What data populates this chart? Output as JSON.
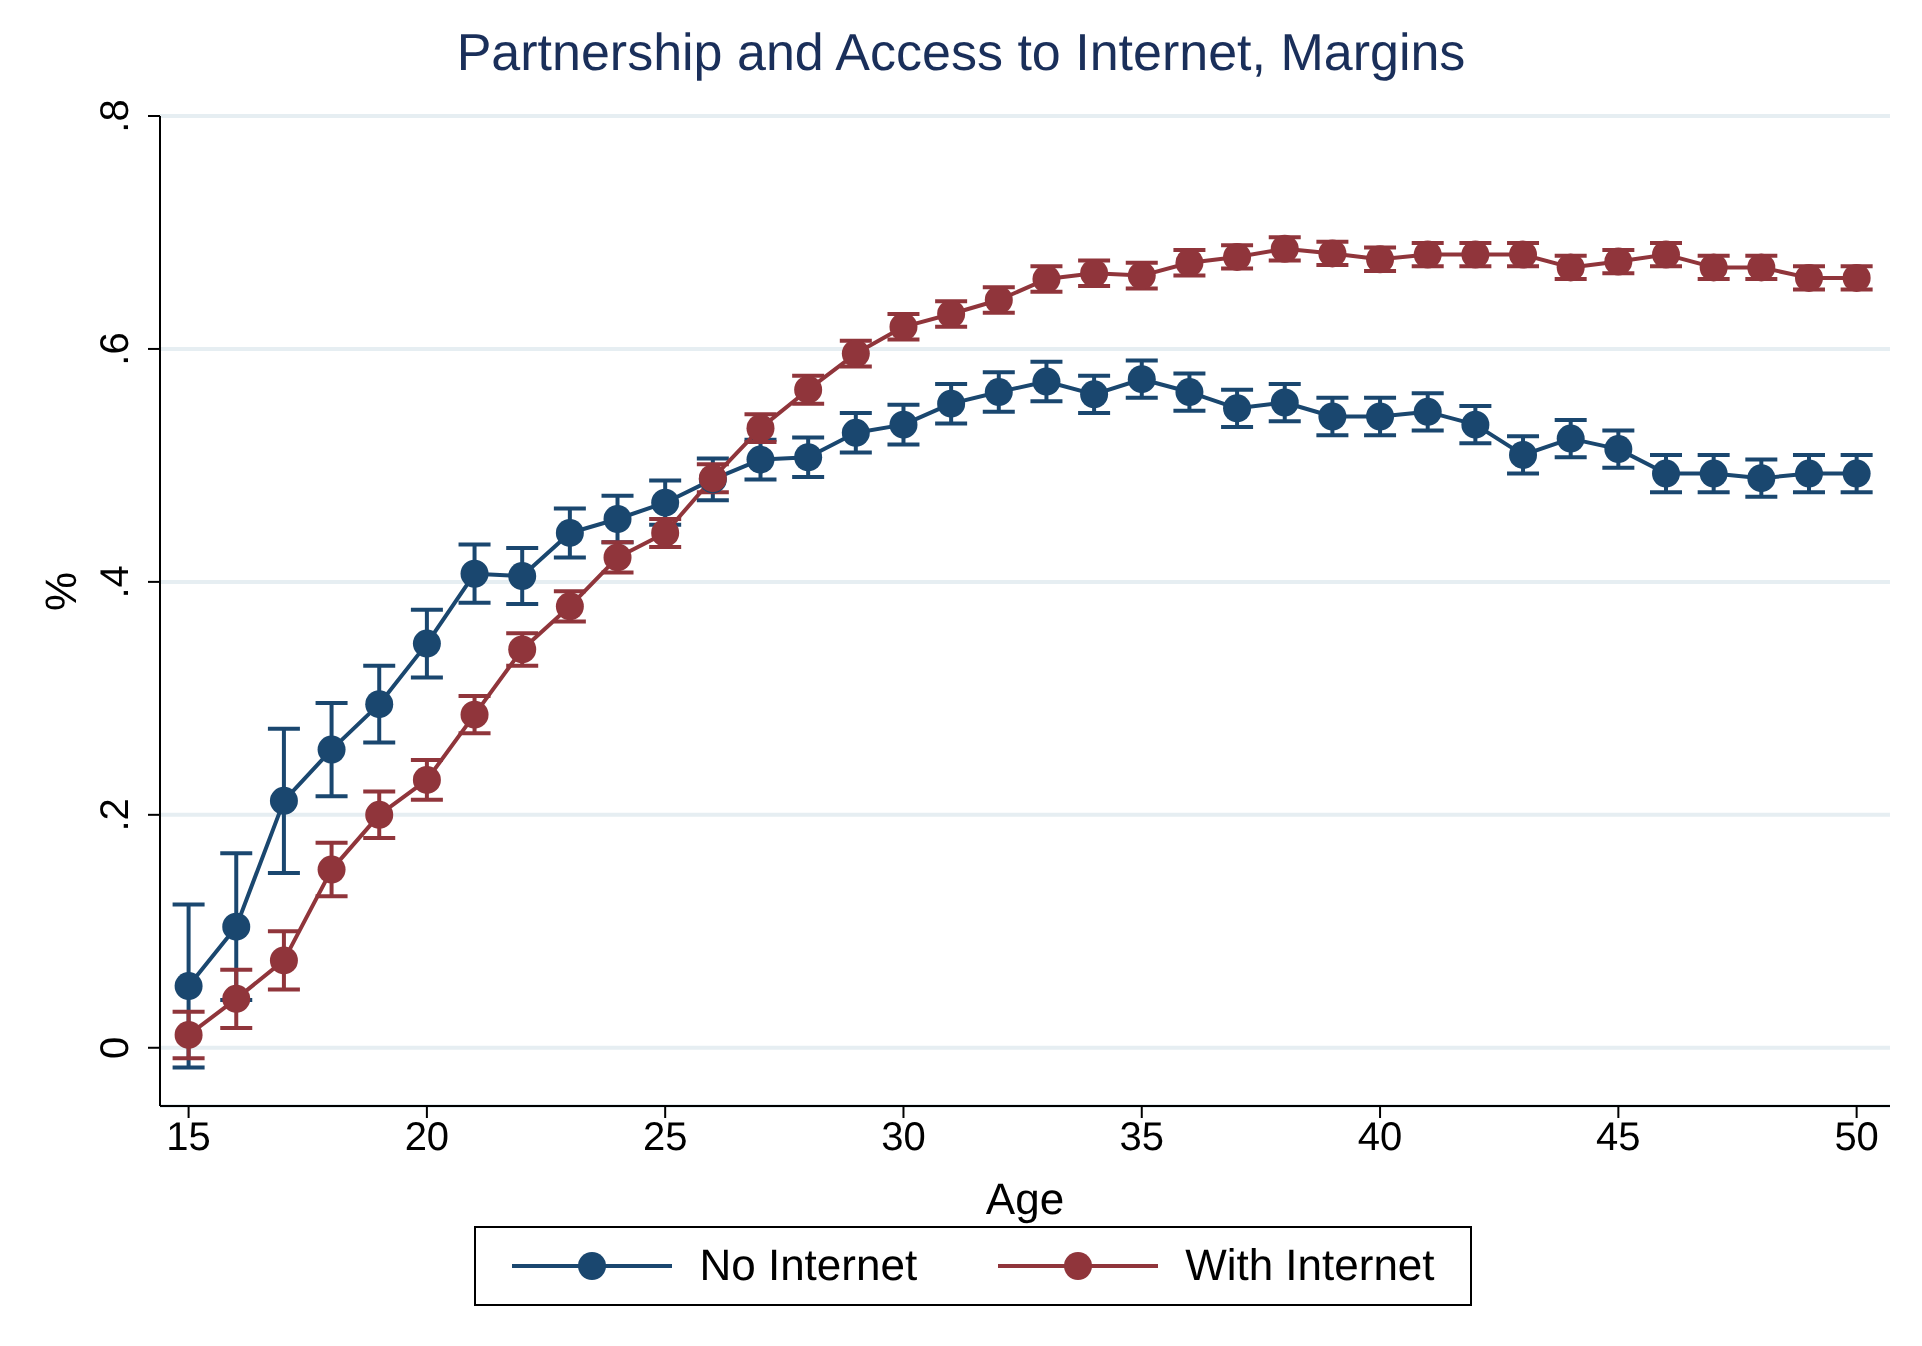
{
  "chart_data": {
    "type": "line",
    "title": "Partnership and Access to Internet, Margins",
    "xlabel": "Age",
    "ylabel": "%",
    "x": [
      15,
      16,
      17,
      18,
      19,
      20,
      21,
      22,
      23,
      24,
      25,
      26,
      27,
      28,
      29,
      30,
      31,
      32,
      33,
      34,
      35,
      36,
      37,
      38,
      39,
      40,
      41,
      42,
      43,
      44,
      45,
      46,
      47,
      48,
      49,
      50
    ],
    "series": [
      {
        "name": "No Internet",
        "color": "#1a476f",
        "values": [
          0.053,
          0.104,
          0.212,
          0.256,
          0.295,
          0.347,
          0.407,
          0.405,
          0.442,
          0.454,
          0.468,
          0.488,
          0.505,
          0.507,
          0.528,
          0.535,
          0.553,
          0.563,
          0.572,
          0.561,
          0.574,
          0.563,
          0.549,
          0.554,
          0.542,
          0.542,
          0.546,
          0.535,
          0.509,
          0.523,
          0.514,
          0.493,
          0.493,
          0.489,
          0.493,
          0.493
        ],
        "errors": [
          0.07,
          0.063,
          0.062,
          0.04,
          0.033,
          0.029,
          0.025,
          0.024,
          0.021,
          0.02,
          0.019,
          0.018,
          0.017,
          0.017,
          0.017,
          0.017,
          0.017,
          0.017,
          0.017,
          0.016,
          0.016,
          0.016,
          0.016,
          0.016,
          0.016,
          0.016,
          0.016,
          0.016,
          0.016,
          0.016,
          0.016,
          0.016,
          0.016,
          0.016,
          0.016,
          0.016
        ]
      },
      {
        "name": "With Internet",
        "color": "#90353b",
        "values": [
          0.011,
          0.042,
          0.075,
          0.153,
          0.2,
          0.23,
          0.286,
          0.342,
          0.379,
          0.421,
          0.442,
          0.489,
          0.532,
          0.565,
          0.596,
          0.619,
          0.63,
          0.642,
          0.66,
          0.665,
          0.663,
          0.674,
          0.679,
          0.686,
          0.682,
          0.677,
          0.681,
          0.681,
          0.681,
          0.67,
          0.675,
          0.681,
          0.67,
          0.67,
          0.661,
          0.661
        ],
        "errors": [
          0.02,
          0.025,
          0.025,
          0.023,
          0.02,
          0.017,
          0.016,
          0.014,
          0.013,
          0.013,
          0.012,
          0.012,
          0.012,
          0.012,
          0.011,
          0.011,
          0.011,
          0.011,
          0.011,
          0.011,
          0.011,
          0.011,
          0.01,
          0.01,
          0.01,
          0.01,
          0.01,
          0.01,
          0.01,
          0.01,
          0.01,
          0.01,
          0.01,
          0.01,
          0.01,
          0.01
        ]
      }
    ],
    "xlim": [
      14.4,
      50.7
    ],
    "xticks": [
      15,
      20,
      25,
      30,
      35,
      40,
      45,
      50
    ],
    "ylim": [
      -0.05,
      0.8
    ],
    "yticks": [
      0,
      {
        "value": 0.2,
        "label": ".2"
      },
      {
        "value": 0.4,
        "label": ".4"
      },
      {
        "value": 0.6,
        "label": ".6"
      },
      {
        "value": 0.8,
        "label": ".8"
      }
    ],
    "grid": "y",
    "legend": "bottom",
    "marker": "circle",
    "line_style": "solid"
  }
}
